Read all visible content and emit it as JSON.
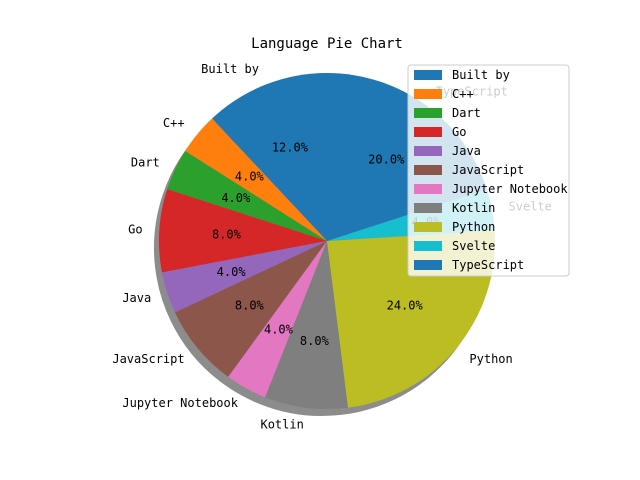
{
  "chart_data": {
    "type": "pie",
    "title": "Language Pie Chart",
    "slices": [
      {
        "label": "Built by",
        "value": 12.0,
        "pct_label": "12.0%",
        "color": "#1f77b4"
      },
      {
        "label": "C++",
        "value": 4.0,
        "pct_label": "4.0%",
        "color": "#ff7f0e"
      },
      {
        "label": "Dart",
        "value": 4.0,
        "pct_label": "4.0%",
        "color": "#2ca02c"
      },
      {
        "label": "Go",
        "value": 8.0,
        "pct_label": "8.0%",
        "color": "#d62728"
      },
      {
        "label": "Java",
        "value": 4.0,
        "pct_label": "4.0%",
        "color": "#9467bd"
      },
      {
        "label": "JavaScript",
        "value": 8.0,
        "pct_label": "8.0%",
        "color": "#8c564b"
      },
      {
        "label": "Jupyter Notebook",
        "value": 4.0,
        "pct_label": "4.0%",
        "color": "#e377c2"
      },
      {
        "label": "Kotlin",
        "value": 8.0,
        "pct_label": "8.0%",
        "color": "#7f7f7f"
      },
      {
        "label": "Python",
        "value": 24.0,
        "pct_label": "24.0%",
        "color": "#bcbd22"
      },
      {
        "label": "Svelte",
        "value": 4.0,
        "pct_label": "4.0%",
        "color": "#17becf"
      },
      {
        "label": "TypeScript",
        "value": 20.0,
        "pct_label": "20.0%",
        "color": "#1f77b4"
      }
    ],
    "start_angle_deg": 90,
    "direction": "counterclockwise",
    "shadow": true,
    "legend_placement": "upper-right"
  }
}
